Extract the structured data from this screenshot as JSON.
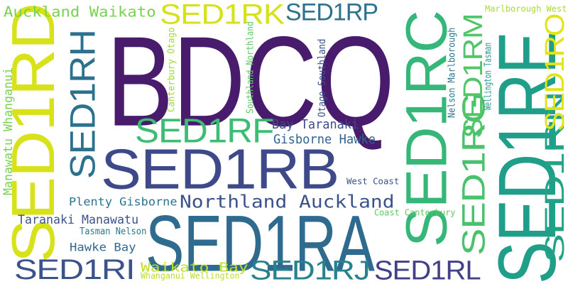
{
  "words": [
    {
      "text": "BDCQ",
      "color": "#481b6d",
      "vertical": false
    },
    {
      "text": "SED1RA",
      "color": "#2f6b8e",
      "vertical": false
    },
    {
      "text": "SED1RB",
      "color": "#3e4989",
      "vertical": false
    },
    {
      "text": "SED1RE",
      "color": "#1f9e89",
      "vertical": true
    },
    {
      "text": "SED1RC",
      "color": "#35b779",
      "vertical": true
    },
    {
      "text": "SED1RD",
      "color": "#d8e219",
      "vertical": true
    },
    {
      "text": "SED1RH",
      "color": "#2c728e",
      "vertical": true
    },
    {
      "text": "SED1RF",
      "color": "#3dbc74",
      "vertical": false
    },
    {
      "text": "SED1RG",
      "color": "#4ac16d",
      "vertical": true
    },
    {
      "text": "SED1RM",
      "color": "#52c569",
      "vertical": true
    },
    {
      "text": "SED1RN",
      "color": "#20a386",
      "vertical": true
    },
    {
      "text": "SED1RO",
      "color": "#e2e418",
      "vertical": true
    },
    {
      "text": "SED1RK",
      "color": "#d5e21a",
      "vertical": false
    },
    {
      "text": "SED1RP",
      "color": "#2d718e",
      "vertical": false
    },
    {
      "text": "SED1RI",
      "color": "#3b528b",
      "vertical": false
    },
    {
      "text": "SED1RJ",
      "color": "#26828e",
      "vertical": false
    },
    {
      "text": "SED1RL",
      "color": "#424086",
      "vertical": false
    },
    {
      "text": "Northland Auckland",
      "color": "#3b528b",
      "vertical": false
    },
    {
      "text": "Auckland Waikato",
      "color": "#7ad151",
      "vertical": false
    },
    {
      "text": "Bay Taranaki",
      "color": "#3e4a89",
      "vertical": false
    },
    {
      "text": "Gisborne Hawke",
      "color": "#33638d",
      "vertical": false
    },
    {
      "text": "Plenty Gisborne",
      "color": "#2c738e",
      "vertical": false
    },
    {
      "text": "Taranaki Manawatu",
      "color": "#3b528b",
      "vertical": false
    },
    {
      "text": "Tasman Nelson",
      "color": "#2a788e",
      "vertical": false
    },
    {
      "text": "Hawke Bay",
      "color": "#31688e",
      "vertical": false
    },
    {
      "text": "Waikato Bay",
      "color": "#bddf26",
      "vertical": false
    },
    {
      "text": "Whanganui Wellington",
      "color": "#b8de29",
      "vertical": false
    },
    {
      "text": "Manawatu Whanganui",
      "color": "#7ad151",
      "vertical": true
    },
    {
      "text": "Canterbury Otago",
      "color": "#a2da37",
      "vertical": true
    },
    {
      "text": "Southland Northland",
      "color": "#5ec962",
      "vertical": true
    },
    {
      "text": "Otago Southland",
      "color": "#3b528b",
      "vertical": true
    },
    {
      "text": "West Coast",
      "color": "#3b528b",
      "vertical": false
    },
    {
      "text": "Coast Canterbury",
      "color": "#5ec962",
      "vertical": false
    },
    {
      "text": "Marlborough West",
      "color": "#a8db34",
      "vertical": false
    },
    {
      "text": "Nelson Marlborough",
      "color": "#2a788e",
      "vertical": true
    },
    {
      "text": "Wellington Tasman",
      "color": "#1f948c",
      "vertical": true
    }
  ]
}
